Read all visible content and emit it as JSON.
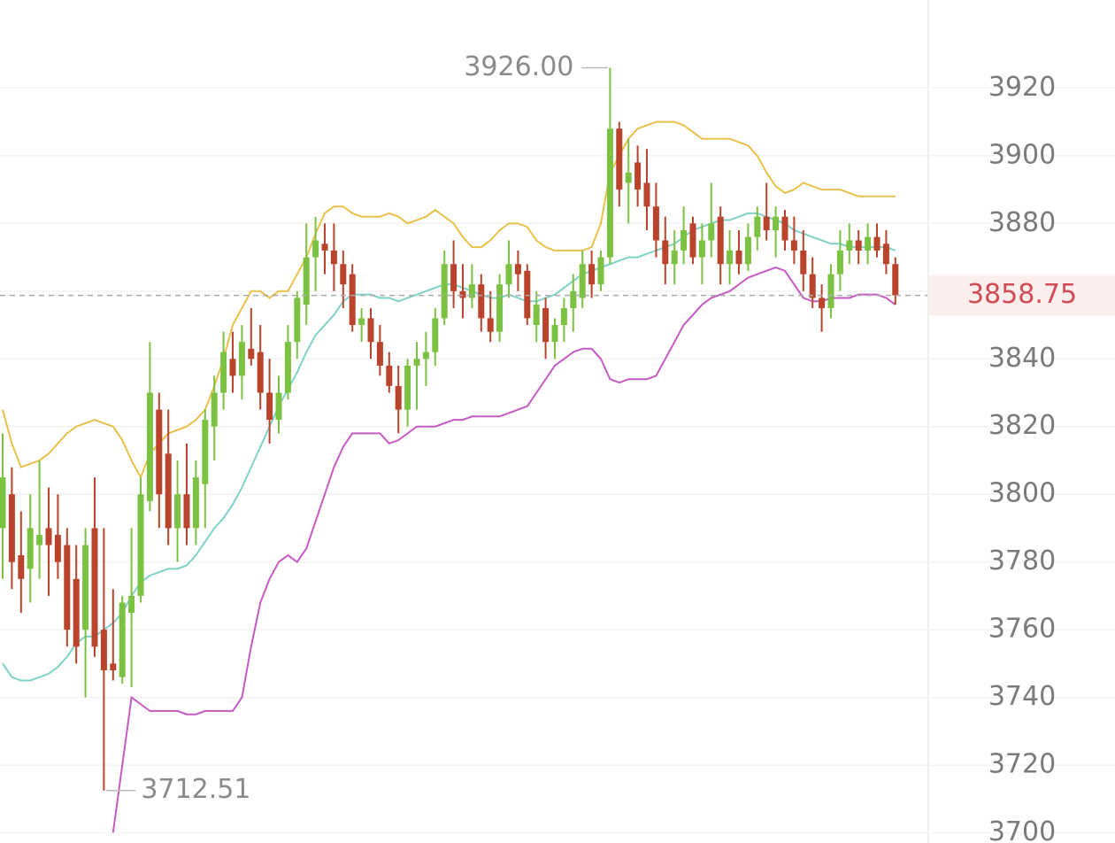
{
  "chart_data": {
    "type": "candlestick",
    "ylim": [
      3697,
      3946
    ],
    "yticks": [
      3700,
      3720,
      3740,
      3760,
      3780,
      3800,
      3820,
      3840,
      3860,
      3880,
      3900,
      3920
    ],
    "grid": true,
    "up_color": "#7cc242",
    "down_color": "#b9432b",
    "last_price": 3858.75,
    "high_label": {
      "value": 3926,
      "label": "3926.00"
    },
    "low_label": {
      "value": 3712.51,
      "label": "3712.51"
    },
    "ohlc": [
      [
        3790,
        3818,
        3775,
        3805
      ],
      [
        3800,
        3808,
        3772,
        3780
      ],
      [
        3782,
        3795,
        3765,
        3775
      ],
      [
        3778,
        3800,
        3768,
        3790
      ],
      [
        3785,
        3810,
        3775,
        3788
      ],
      [
        3790,
        3802,
        3770,
        3785
      ],
      [
        3788,
        3800,
        3775,
        3780
      ],
      [
        3785,
        3790,
        3755,
        3760
      ],
      [
        3775,
        3785,
        3750,
        3755
      ],
      [
        3760,
        3790,
        3740,
        3785
      ],
      [
        3790,
        3805,
        3752,
        3755
      ],
      [
        3760,
        3790,
        3712.51,
        3748
      ],
      [
        3750,
        3772,
        3745,
        3748
      ],
      [
        3746,
        3770,
        3744,
        3768
      ],
      [
        3765,
        3790,
        3743,
        3770
      ],
      [
        3770,
        3805,
        3768,
        3800
      ],
      [
        3798,
        3845,
        3795,
        3830
      ],
      [
        3825,
        3830,
        3790,
        3800
      ],
      [
        3812,
        3825,
        3785,
        3790
      ],
      [
        3790,
        3810,
        3780,
        3800
      ],
      [
        3800,
        3815,
        3785,
        3790
      ],
      [
        3790,
        3810,
        3785,
        3805
      ],
      [
        3803,
        3825,
        3790,
        3822
      ],
      [
        3820,
        3835,
        3810,
        3830
      ],
      [
        3830,
        3848,
        3825,
        3842
      ],
      [
        3840,
        3848,
        3830,
        3835
      ],
      [
        3835,
        3850,
        3828,
        3845
      ],
      [
        3843,
        3855,
        3838,
        3840
      ],
      [
        3842,
        3850,
        3825,
        3830
      ],
      [
        3830,
        3840,
        3815,
        3822
      ],
      [
        3822,
        3835,
        3818,
        3830
      ],
      [
        3830,
        3850,
        3828,
        3845
      ],
      [
        3845,
        3860,
        3840,
        3858
      ],
      [
        3856,
        3880,
        3850,
        3870
      ],
      [
        3870,
        3882,
        3860,
        3875
      ],
      [
        3874,
        3880,
        3865,
        3872
      ],
      [
        3872,
        3880,
        3860,
        3868
      ],
      [
        3868,
        3872,
        3855,
        3862
      ],
      [
        3865,
        3868,
        3848,
        3850
      ],
      [
        3850,
        3855,
        3845,
        3852
      ],
      [
        3852,
        3855,
        3840,
        3845
      ],
      [
        3845,
        3850,
        3835,
        3838
      ],
      [
        3838,
        3842,
        3830,
        3832
      ],
      [
        3832,
        3838,
        3818,
        3825
      ],
      [
        3825,
        3840,
        3820,
        3838
      ],
      [
        3838,
        3845,
        3825,
        3840
      ],
      [
        3840,
        3848,
        3832,
        3842
      ],
      [
        3842,
        3855,
        3838,
        3852
      ],
      [
        3852,
        3872,
        3850,
        3868
      ],
      [
        3868,
        3875,
        3855,
        3860
      ],
      [
        3860,
        3868,
        3852,
        3858
      ],
      [
        3858,
        3868,
        3855,
        3862
      ],
      [
        3862,
        3865,
        3848,
        3852
      ],
      [
        3852,
        3860,
        3845,
        3848
      ],
      [
        3848,
        3865,
        3845,
        3862
      ],
      [
        3862,
        3875,
        3858,
        3868
      ],
      [
        3868,
        3872,
        3860,
        3865
      ],
      [
        3866,
        3868,
        3850,
        3852
      ],
      [
        3850,
        3860,
        3845,
        3856
      ],
      [
        3855,
        3858,
        3840,
        3845
      ],
      [
        3845,
        3852,
        3840,
        3850
      ],
      [
        3850,
        3858,
        3845,
        3855
      ],
      [
        3855,
        3865,
        3848,
        3860
      ],
      [
        3858,
        3872,
        3855,
        3868
      ],
      [
        3868,
        3872,
        3858,
        3862
      ],
      [
        3862,
        3872,
        3860,
        3870
      ],
      [
        3870,
        3926,
        3868,
        3908
      ],
      [
        3908,
        3910,
        3885,
        3890
      ],
      [
        3892,
        3905,
        3880,
        3895
      ],
      [
        3898,
        3903,
        3885,
        3890
      ],
      [
        3892,
        3902,
        3878,
        3885
      ],
      [
        3885,
        3892,
        3870,
        3875
      ],
      [
        3875,
        3882,
        3862,
        3868
      ],
      [
        3868,
        3878,
        3862,
        3872
      ],
      [
        3872,
        3885,
        3868,
        3878
      ],
      [
        3880,
        3882,
        3868,
        3870
      ],
      [
        3870,
        3880,
        3862,
        3875
      ],
      [
        3875,
        3892,
        3870,
        3880
      ],
      [
        3882,
        3885,
        3862,
        3868
      ],
      [
        3868,
        3878,
        3862,
        3872
      ],
      [
        3872,
        3878,
        3865,
        3868
      ],
      [
        3868,
        3880,
        3866,
        3876
      ],
      [
        3876,
        3885,
        3872,
        3882
      ],
      [
        3882,
        3892,
        3875,
        3878
      ],
      [
        3878,
        3885,
        3870,
        3882
      ],
      [
        3882,
        3884,
        3872,
        3875
      ],
      [
        3875,
        3882,
        3868,
        3872
      ],
      [
        3872,
        3878,
        3860,
        3865
      ],
      [
        3865,
        3870,
        3855,
        3858
      ],
      [
        3858,
        3862,
        3848,
        3855
      ],
      [
        3855,
        3868,
        3852,
        3865
      ],
      [
        3865,
        3878,
        3860,
        3872
      ],
      [
        3872,
        3880,
        3868,
        3875
      ],
      [
        3875,
        3878,
        3868,
        3872
      ],
      [
        3872,
        3880,
        3868,
        3876
      ],
      [
        3876,
        3880,
        3870,
        3872
      ],
      [
        3874,
        3878,
        3865,
        3868
      ],
      [
        3868,
        3870,
        3856,
        3858.75
      ]
    ],
    "series": [
      {
        "color": "#e8c04a",
        "values": [
          3825,
          3815,
          3808,
          3809,
          3810,
          3812,
          3815,
          3818,
          3820,
          3821,
          3822,
          3821,
          3820,
          3816,
          3810,
          3805,
          3812,
          3815,
          3818,
          3819,
          3820,
          3822,
          3825,
          3832,
          3840,
          3850,
          3855,
          3860,
          3860,
          3858,
          3860,
          3860,
          3865,
          3870,
          3877,
          3883,
          3885,
          3885,
          3883,
          3882,
          3882,
          3882,
          3883,
          3882,
          3880,
          3881,
          3882,
          3884,
          3882,
          3880,
          3876,
          3873,
          3873,
          3875,
          3878,
          3880,
          3880,
          3879,
          3875,
          3873,
          3872,
          3872,
          3872,
          3872,
          3873,
          3880,
          3895,
          3900,
          3905,
          3908,
          3909,
          3910,
          3910,
          3910,
          3909,
          3907,
          3905,
          3905,
          3905,
          3905,
          3904,
          3903,
          3900,
          3895,
          3891,
          3889,
          3890,
          3892,
          3891,
          3890,
          3890,
          3890,
          3889,
          3888,
          3888,
          3888,
          3888,
          3888
        ]
      },
      {
        "color": "#7fd1c8",
        "values": [
          3750,
          3746,
          3745,
          3745,
          3746,
          3747,
          3749,
          3752,
          3756,
          3758,
          3758,
          3760,
          3762,
          3765,
          3770,
          3774,
          3776,
          3777,
          3778,
          3778,
          3779,
          3782,
          3786,
          3790,
          3793,
          3797,
          3802,
          3808,
          3814,
          3820,
          3826,
          3831,
          3836,
          3842,
          3847,
          3850,
          3853,
          3857,
          3859,
          3859,
          3859,
          3858,
          3858,
          3857,
          3858,
          3859,
          3860,
          3861,
          3862,
          3862,
          3861,
          3860,
          3859,
          3858,
          3858,
          3859,
          3858,
          3857,
          3857,
          3858,
          3859,
          3861,
          3863,
          3865,
          3866,
          3867,
          3868,
          3869,
          3870,
          3870,
          3871,
          3872,
          3873,
          3874,
          3876,
          3878,
          3879,
          3880,
          3881,
          3881,
          3882,
          3883,
          3883,
          3882,
          3881,
          3880,
          3878,
          3877,
          3876,
          3875,
          3874,
          3874,
          3873,
          3873,
          3873,
          3873,
          3873,
          3872
        ]
      },
      {
        "color": "#c65ac3",
        "values": [
          null,
          null,
          null,
          null,
          null,
          null,
          null,
          null,
          null,
          null,
          null,
          null,
          3700,
          3720,
          3740,
          3738,
          3736,
          3736,
          3736,
          3736,
          3735,
          3735,
          3736,
          3736,
          3736,
          3736,
          3740,
          3755,
          3768,
          3775,
          3780,
          3782,
          3780,
          3784,
          3792,
          3800,
          3808,
          3814,
          3818,
          3818,
          3818,
          3818,
          3815,
          3816,
          3818,
          3820,
          3820,
          3820,
          3821,
          3822,
          3822,
          3823,
          3823,
          3823,
          3823,
          3824,
          3825,
          3826,
          3830,
          3834,
          3838,
          3840,
          3842,
          3843,
          3843,
          3840,
          3834,
          3833,
          3834,
          3834,
          3834,
          3835,
          3840,
          3845,
          3850,
          3853,
          3856,
          3858,
          3859,
          3860,
          3862,
          3864,
          3865,
          3866,
          3867,
          3866,
          3862,
          3858,
          3857,
          3857,
          3858,
          3858,
          3858,
          3859,
          3859,
          3859,
          3858,
          3856
        ]
      }
    ]
  }
}
